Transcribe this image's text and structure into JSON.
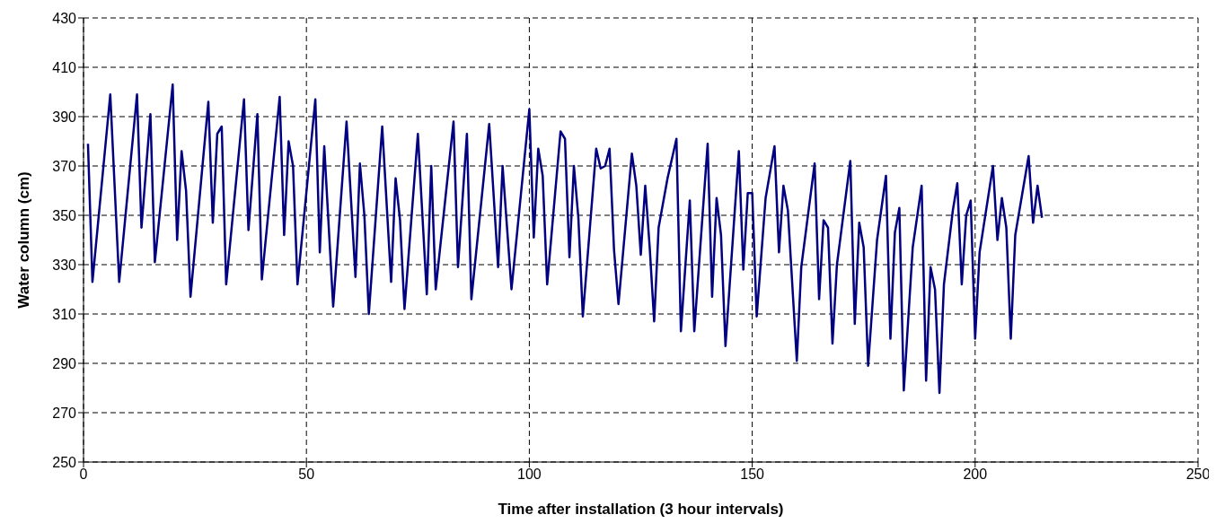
{
  "chart_data": {
    "type": "line",
    "xlabel": "Time after installation (3 hour intervals)",
    "ylabel": "Water column (cm)",
    "x": [
      1,
      2,
      6,
      8,
      12,
      13,
      15,
      16,
      20,
      21,
      22,
      23,
      24,
      28,
      29,
      30,
      31,
      32,
      36,
      37,
      39,
      40,
      44,
      45,
      46,
      47,
      48,
      52,
      53,
      54,
      56,
      59,
      61,
      62,
      63,
      64,
      67,
      69,
      70,
      71,
      72,
      75,
      77,
      78,
      79,
      83,
      84,
      86,
      87,
      91,
      93,
      94,
      96,
      100,
      101,
      102,
      103,
      104,
      107,
      108,
      109,
      110,
      111,
      112,
      115,
      116,
      117,
      118,
      119,
      120,
      123,
      124,
      125,
      126,
      127,
      128,
      129,
      131,
      133,
      134,
      136,
      137,
      140,
      141,
      142,
      143,
      144,
      147,
      148,
      149,
      150,
      151,
      153,
      155,
      156,
      157,
      158,
      160,
      161,
      164,
      165,
      166,
      167,
      168,
      169,
      172,
      173,
      174,
      175,
      176,
      178,
      180,
      181,
      182,
      183,
      184,
      186,
      188,
      189,
      190,
      191,
      192,
      193,
      195,
      196,
      197,
      198,
      199,
      200,
      201,
      204,
      205,
      206,
      207,
      208,
      209,
      212,
      213,
      214,
      215
    ],
    "series": [
      {
        "color": "#000080",
        "values": [
          379,
          323,
          399,
          323,
          399,
          345,
          391,
          331,
          403,
          340,
          376,
          360,
          317,
          396,
          347,
          383,
          386,
          322,
          397,
          344,
          391,
          324,
          398,
          342,
          380,
          370,
          322,
          397,
          335,
          378,
          313,
          388,
          325,
          371,
          350,
          310,
          386,
          323,
          365,
          348,
          312,
          383,
          318,
          370,
          320,
          388,
          329,
          383,
          316,
          387,
          329,
          370,
          320,
          393,
          341,
          377,
          366,
          322,
          384,
          381,
          333,
          370,
          349,
          309,
          377,
          369,
          370,
          377,
          336,
          314,
          375,
          362,
          334,
          362,
          337,
          307,
          345,
          365,
          381,
          303,
          356,
          303,
          379,
          317,
          357,
          342,
          297,
          376,
          328,
          359,
          359,
          309,
          357,
          378,
          335,
          362,
          352,
          291,
          329,
          371,
          316,
          348,
          345,
          298,
          330,
          372,
          306,
          347,
          337,
          289,
          340,
          366,
          300,
          343,
          353,
          279,
          337,
          362,
          283,
          329,
          320,
          278,
          322,
          352,
          363,
          322,
          350,
          356,
          300,
          335,
          370,
          340,
          357,
          345,
          300,
          342,
          374,
          347,
          362,
          349
        ]
      }
    ],
    "xlim": [
      0,
      250
    ],
    "xticks": [
      0,
      50,
      100,
      150,
      200,
      250
    ],
    "ylim": [
      250,
      430
    ],
    "yticks": [
      250,
      270,
      290,
      310,
      330,
      350,
      370,
      390,
      410,
      430
    ],
    "grid": true,
    "marker": "none",
    "line_style": "solid"
  }
}
